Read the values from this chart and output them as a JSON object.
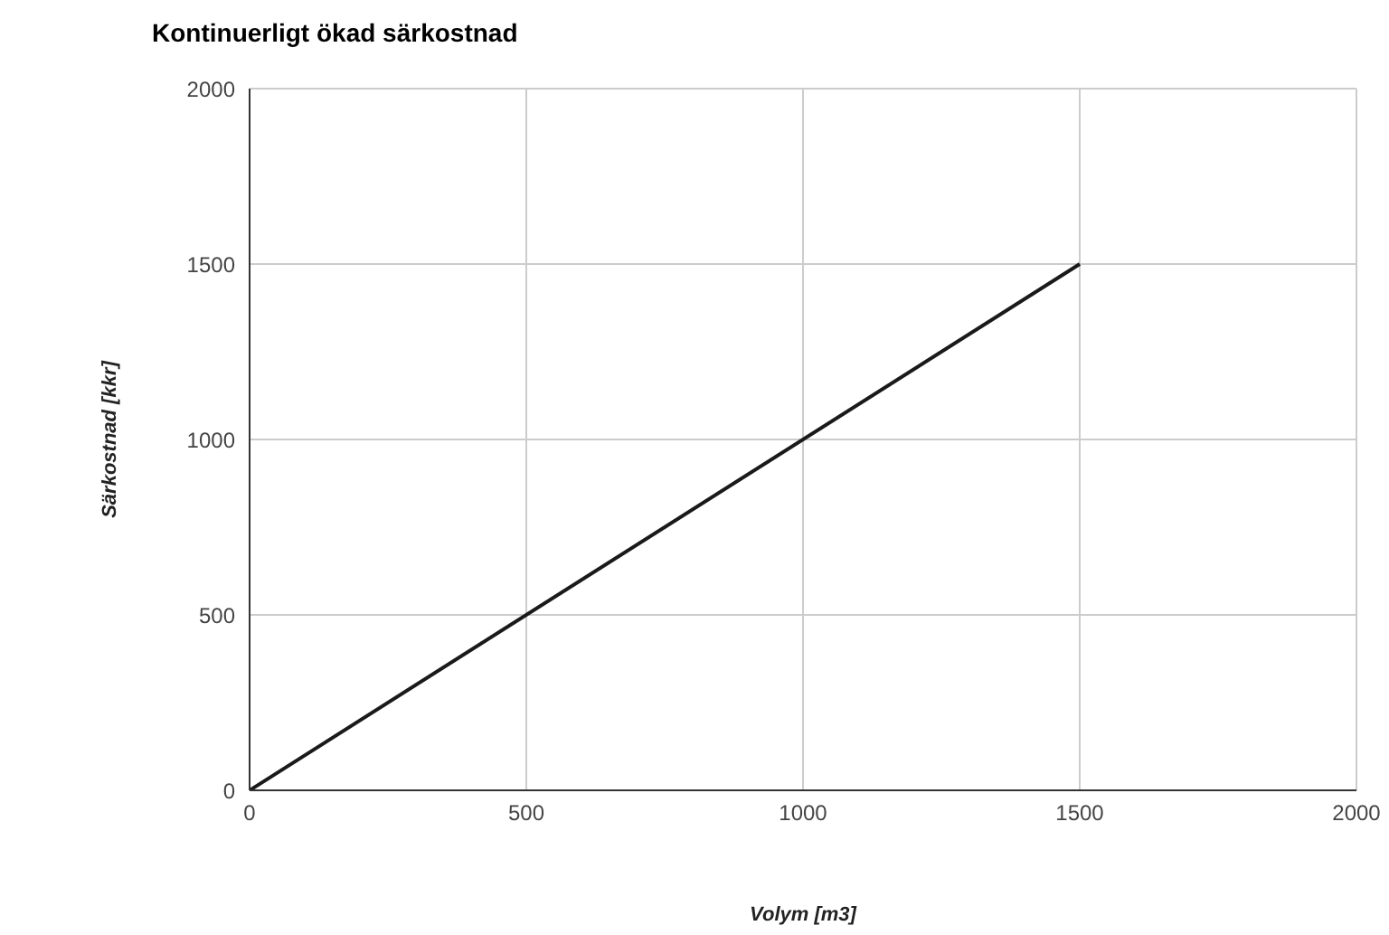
{
  "chart_data": {
    "type": "line",
    "title": "Kontinuerligt ökad särkostnad",
    "xlabel": "Volym [m3]",
    "ylabel": "Särkostnad [kkr]",
    "x": [
      0,
      1500
    ],
    "series": [
      {
        "color": "#1a1a1a",
        "values": [
          0,
          1500
        ]
      }
    ],
    "xlim": [
      0,
      2000
    ],
    "xticks": [
      0,
      500,
      1000,
      1500,
      2000
    ],
    "ylim": [
      0,
      2000
    ],
    "yticks": [
      0,
      500,
      1000,
      1500,
      2000
    ],
    "grid": true,
    "legend": false,
    "marker": "none",
    "line_style": "solid"
  }
}
